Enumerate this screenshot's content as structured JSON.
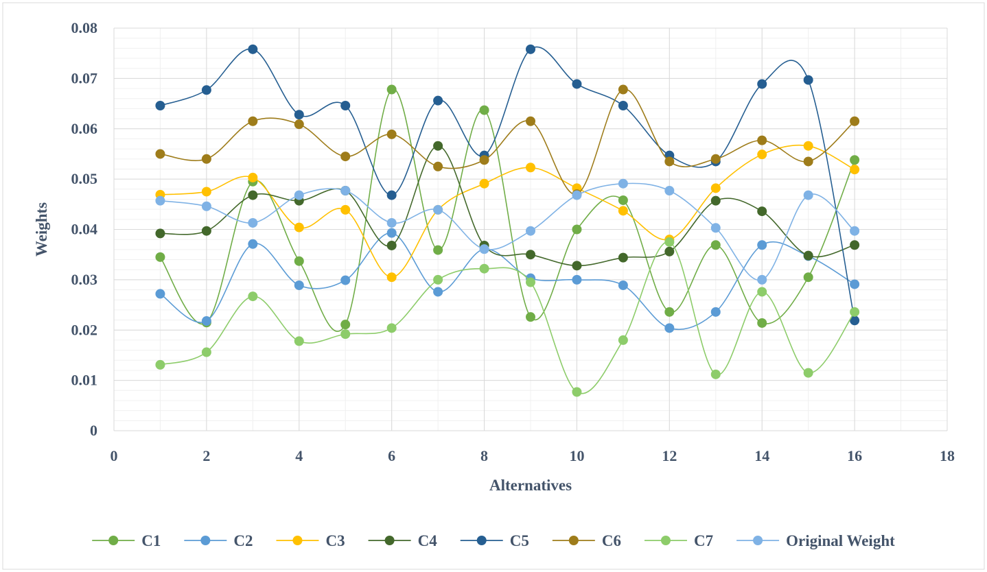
{
  "chart_data": {
    "type": "scatter",
    "title": "",
    "xlabel": "Alternatives",
    "ylabel": "Weights",
    "xlim": [
      0,
      18
    ],
    "ylim": [
      0,
      0.08
    ],
    "x_ticks": [
      0,
      2,
      4,
      6,
      8,
      10,
      12,
      14,
      16,
      18
    ],
    "x_tick_labels": [
      "0",
      "2",
      "4",
      "6",
      "8",
      "10",
      "12",
      "14",
      "16",
      "18"
    ],
    "y_ticks": [
      0,
      0.01,
      0.02,
      0.03,
      0.04,
      0.05,
      0.06,
      0.07,
      0.08
    ],
    "y_tick_labels": [
      "0",
      "0.01",
      "0.02",
      "0.03",
      "0.04",
      "0.05",
      "0.06",
      "0.07",
      "0.08"
    ],
    "grid": true,
    "line_style": "smooth-with-markers",
    "legend_position": "bottom",
    "x": [
      1,
      2,
      3,
      4,
      5,
      6,
      7,
      8,
      9,
      10,
      11,
      12,
      13,
      14,
      15,
      16
    ],
    "series": [
      {
        "name": "C1",
        "color": "#70ad47",
        "values": [
          0.0345,
          0.0215,
          0.0495,
          0.0337,
          0.0211,
          0.0678,
          0.0359,
          0.0637,
          0.0226,
          0.04,
          0.0458,
          0.0236,
          0.0369,
          0.0214,
          0.0305,
          0.0538
        ]
      },
      {
        "name": "C2",
        "color": "#5b9bd5",
        "values": [
          0.0272,
          0.0218,
          0.0371,
          0.0289,
          0.0299,
          0.0393,
          0.0276,
          0.0361,
          0.0303,
          0.03,
          0.0289,
          0.0204,
          0.0236,
          0.0369,
          0.0347,
          0.0291
        ]
      },
      {
        "name": "C3",
        "color": "#ffc000",
        "values": [
          0.0469,
          0.0475,
          0.0503,
          0.0404,
          0.0439,
          0.0305,
          0.0439,
          0.0491,
          0.0523,
          0.0482,
          0.0437,
          0.038,
          0.0482,
          0.0549,
          0.0566,
          0.0519
        ]
      },
      {
        "name": "C4",
        "color": "#43682b",
        "values": [
          0.0392,
          0.0397,
          0.0468,
          0.0457,
          0.0477,
          0.0368,
          0.0566,
          0.0368,
          0.035,
          0.0328,
          0.0344,
          0.0356,
          0.0457,
          0.0436,
          0.0348,
          0.0369
        ]
      },
      {
        "name": "C5",
        "color": "#255e91",
        "values": [
          0.0646,
          0.0677,
          0.0758,
          0.0628,
          0.0646,
          0.0468,
          0.0656,
          0.0547,
          0.0758,
          0.0689,
          0.0646,
          0.0547,
          0.0535,
          0.0689,
          0.0697,
          0.0219
        ]
      },
      {
        "name": "C6",
        "color": "#9e7c1a",
        "values": [
          0.055,
          0.054,
          0.0615,
          0.0609,
          0.0545,
          0.0589,
          0.0525,
          0.0538,
          0.0615,
          0.047,
          0.0678,
          0.0535,
          0.054,
          0.0577,
          0.0535,
          0.0615
        ]
      },
      {
        "name": "C7",
        "color": "#8dcc6a",
        "values": [
          0.0131,
          0.0156,
          0.0267,
          0.0178,
          0.0192,
          0.0204,
          0.03,
          0.0322,
          0.0295,
          0.0077,
          0.018,
          0.0375,
          0.0112,
          0.0276,
          0.0115,
          0.0236
        ]
      },
      {
        "name": "Original Weight",
        "color": "#7fb2e5",
        "values": [
          0.0457,
          0.0446,
          0.0413,
          0.0468,
          0.0477,
          0.0413,
          0.0439,
          0.0361,
          0.0397,
          0.0468,
          0.0491,
          0.0477,
          0.0403,
          0.03,
          0.0468,
          0.0397
        ]
      }
    ]
  }
}
